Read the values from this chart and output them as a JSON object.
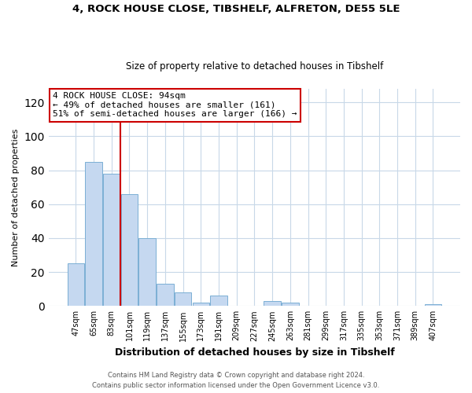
{
  "title1": "4, ROCK HOUSE CLOSE, TIBSHELF, ALFRETON, DE55 5LE",
  "title2": "Size of property relative to detached houses in Tibshelf",
  "xlabel": "Distribution of detached houses by size in Tibshelf",
  "ylabel": "Number of detached properties",
  "bar_labels": [
    "47sqm",
    "65sqm",
    "83sqm",
    "101sqm",
    "119sqm",
    "137sqm",
    "155sqm",
    "173sqm",
    "191sqm",
    "209sqm",
    "227sqm",
    "245sqm",
    "263sqm",
    "281sqm",
    "299sqm",
    "317sqm",
    "335sqm",
    "353sqm",
    "371sqm",
    "389sqm",
    "407sqm"
  ],
  "bar_values": [
    25,
    85,
    78,
    66,
    40,
    13,
    8,
    2,
    6,
    0,
    0,
    3,
    2,
    0,
    0,
    0,
    0,
    0,
    0,
    0,
    1
  ],
  "bar_color": "#c5d8f0",
  "bar_edgecolor": "#7bafd4",
  "vline_idx": 2.5,
  "vline_color": "#cc0000",
  "annotation_title": "4 ROCK HOUSE CLOSE: 94sqm",
  "annotation_line1": "← 49% of detached houses are smaller (161)",
  "annotation_line2": "51% of semi-detached houses are larger (166) →",
  "annotation_box_edgecolor": "#cc0000",
  "ylim": [
    0,
    128
  ],
  "yticks": [
    0,
    20,
    40,
    60,
    80,
    100,
    120
  ],
  "footer1": "Contains HM Land Registry data © Crown copyright and database right 2024.",
  "footer2": "Contains public sector information licensed under the Open Government Licence v3.0.",
  "bg_color": "#ffffff",
  "grid_color": "#c8d8e8",
  "title1_fontsize": 9.5,
  "title2_fontsize": 8.5,
  "ylabel_fontsize": 8,
  "xlabel_fontsize": 9,
  "tick_fontsize": 7,
  "annotation_fontsize": 8,
  "footer_fontsize": 6
}
